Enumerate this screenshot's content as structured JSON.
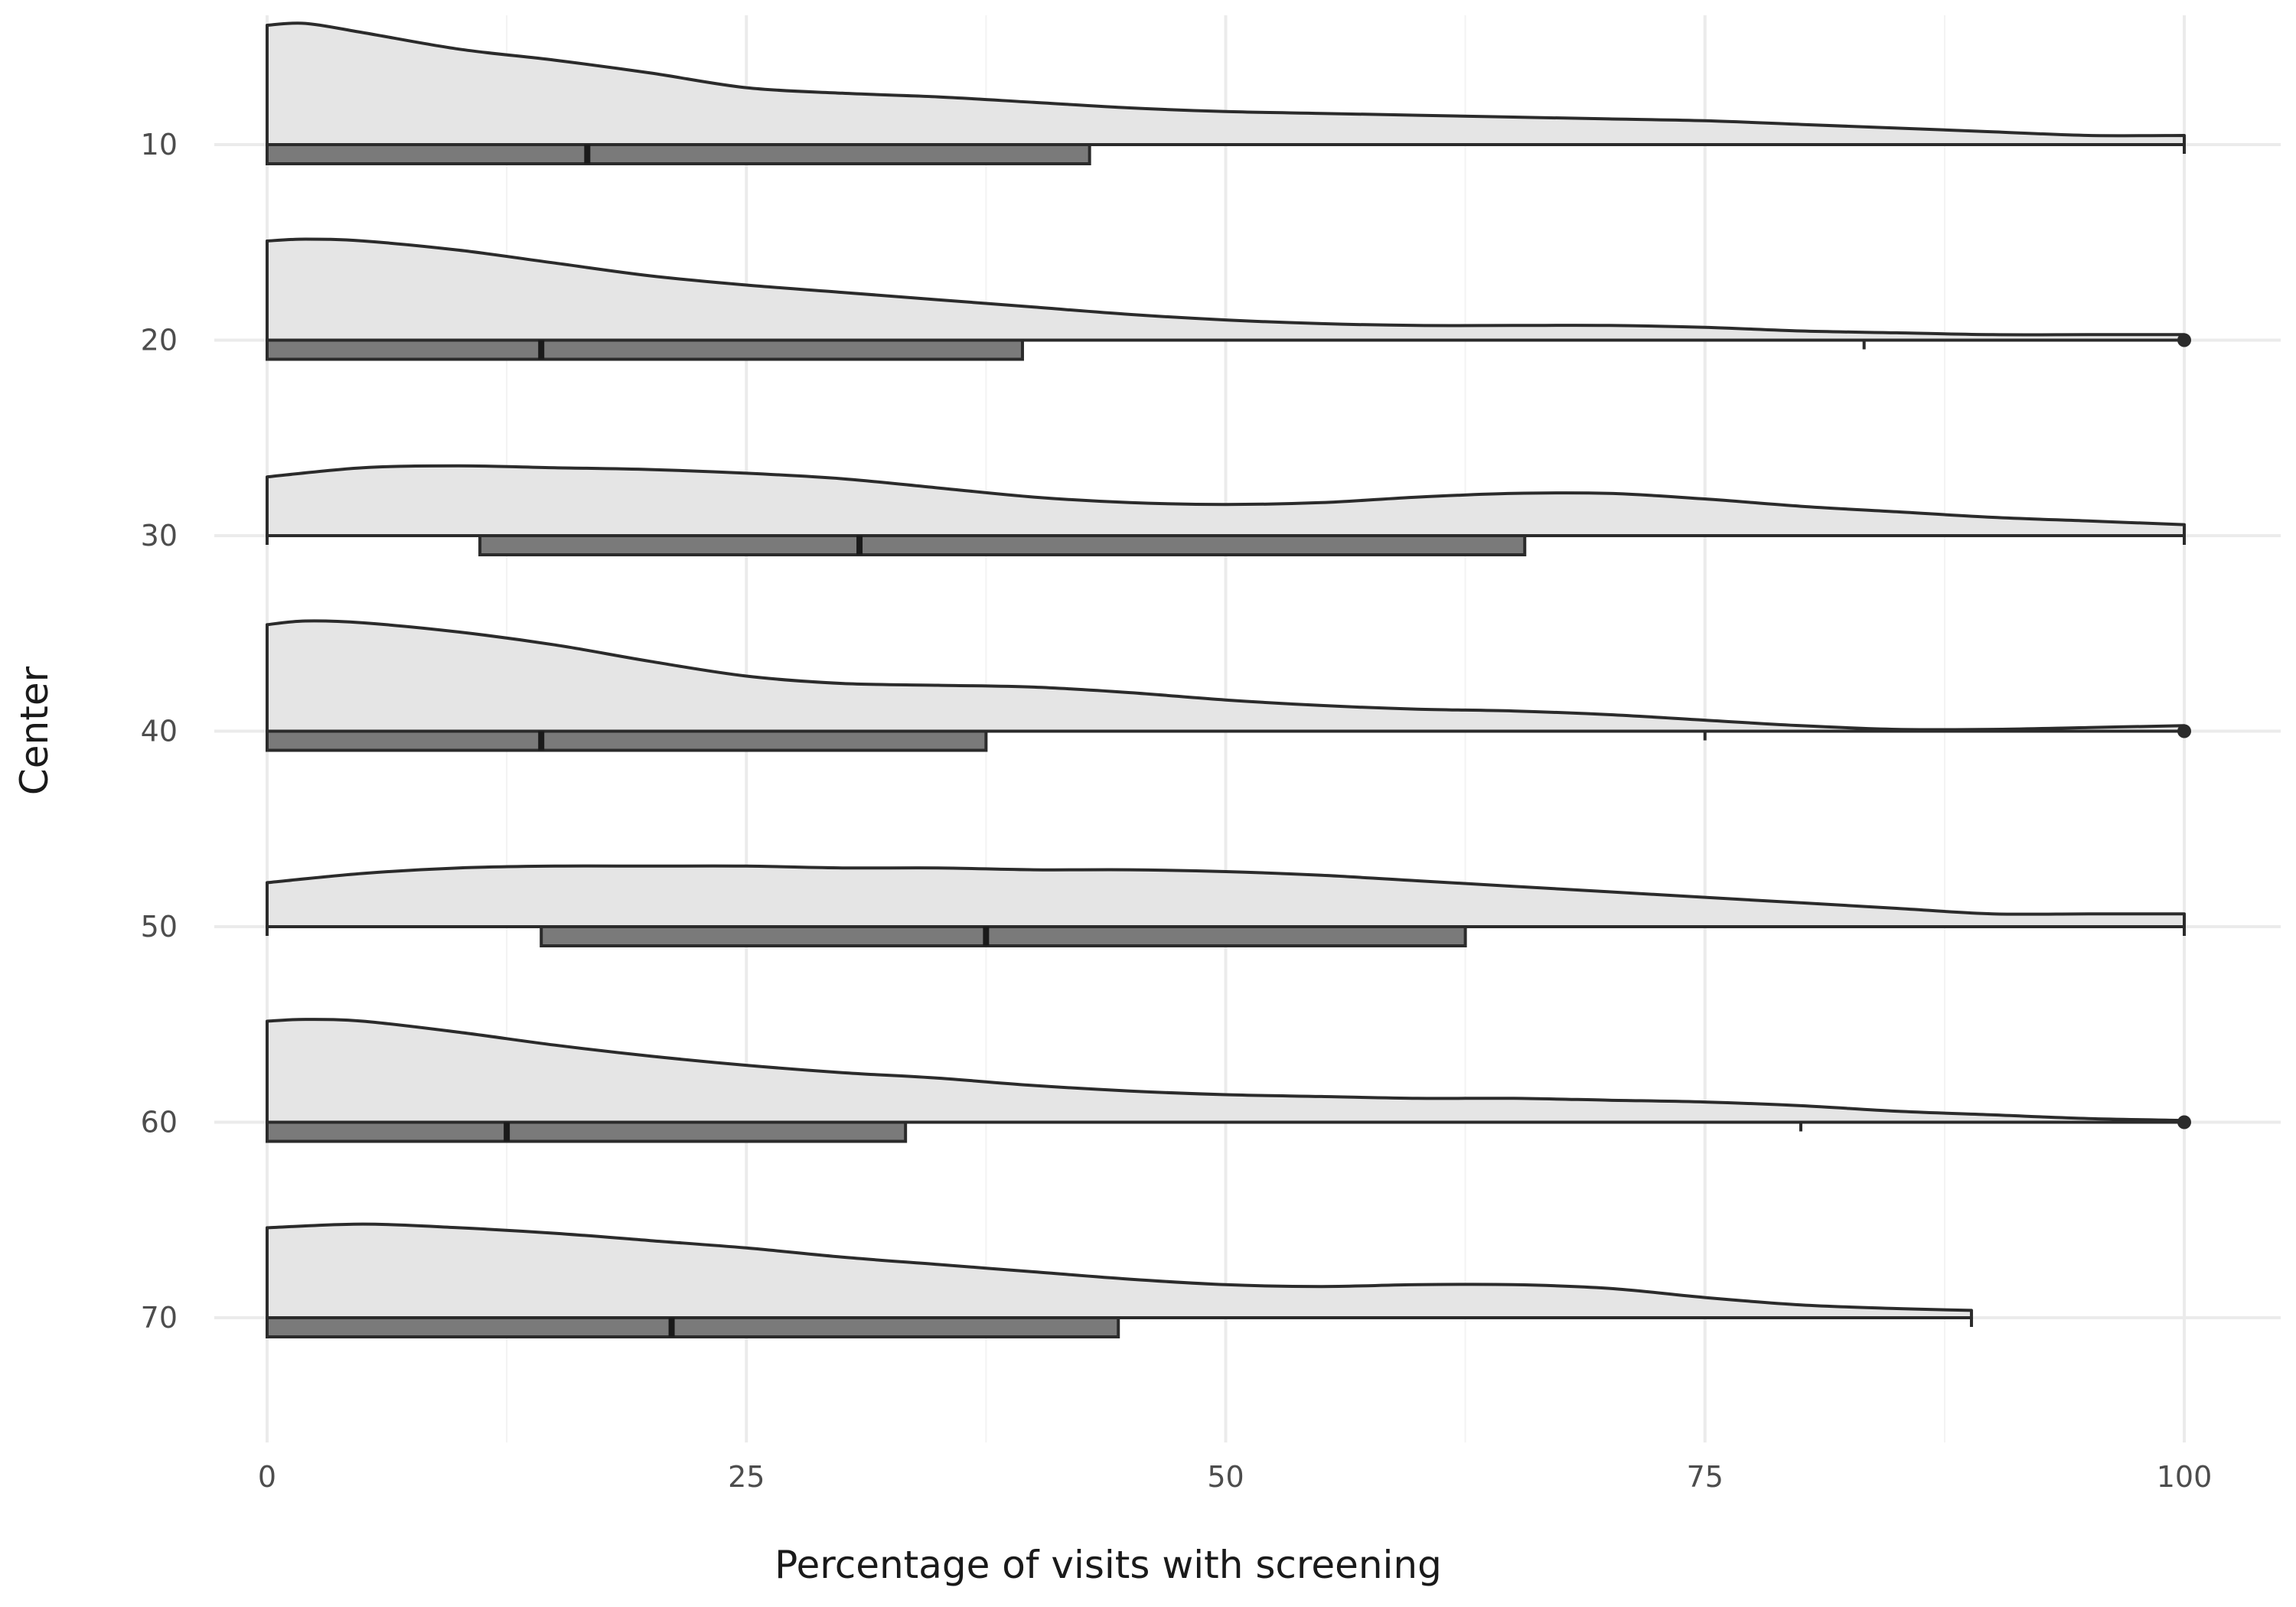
{
  "chart_data": {
    "type": "raincloud",
    "xlabel": "Percentage of visits with screening",
    "ylabel": "Center",
    "xlim": [
      -3.5,
      105
    ],
    "ylim": [
      -7,
      77
    ],
    "x_ticks": [
      0,
      25,
      50,
      75,
      100
    ],
    "y_ticks": [
      10,
      20,
      30,
      40,
      50,
      60,
      70
    ],
    "grid": true,
    "legend": "none",
    "colors": {
      "density_fill": "#e5e5e5",
      "box_fill": "#7a7a7a",
      "outline": "#2b2b2b"
    },
    "series": [
      {
        "center": 10,
        "box": {
          "q1": 0,
          "median": 16.7,
          "q3": 42.9,
          "whisker_low": 0,
          "whisker_high": 100
        },
        "outliers": [],
        "density": [
          [
            0,
            6.5
          ],
          [
            2,
            6.6
          ],
          [
            5,
            6.1
          ],
          [
            10,
            5.2
          ],
          [
            15,
            4.6
          ],
          [
            20,
            3.9
          ],
          [
            25,
            3.1
          ],
          [
            30,
            2.8
          ],
          [
            35,
            2.6
          ],
          [
            40,
            2.3
          ],
          [
            45,
            2.0
          ],
          [
            50,
            1.8
          ],
          [
            55,
            1.7
          ],
          [
            60,
            1.6
          ],
          [
            65,
            1.5
          ],
          [
            70,
            1.4
          ],
          [
            75,
            1.3
          ],
          [
            80,
            1.1
          ],
          [
            85,
            0.9
          ],
          [
            90,
            0.7
          ],
          [
            95,
            0.5
          ],
          [
            100,
            0.5
          ]
        ]
      },
      {
        "center": 20,
        "box": {
          "q1": 0,
          "median": 14.3,
          "q3": 39.4,
          "whisker_low": 0,
          "whisker_high": 83.3
        },
        "outliers": [
          100
        ],
        "density": [
          [
            0,
            5.4
          ],
          [
            2,
            5.5
          ],
          [
            5,
            5.4
          ],
          [
            10,
            4.9
          ],
          [
            15,
            4.2
          ],
          [
            20,
            3.5
          ],
          [
            25,
            3.0
          ],
          [
            30,
            2.6
          ],
          [
            35,
            2.2
          ],
          [
            40,
            1.8
          ],
          [
            45,
            1.4
          ],
          [
            50,
            1.1
          ],
          [
            55,
            0.9
          ],
          [
            60,
            0.8
          ],
          [
            65,
            0.8
          ],
          [
            70,
            0.8
          ],
          [
            75,
            0.7
          ],
          [
            80,
            0.5
          ],
          [
            85,
            0.4
          ],
          [
            90,
            0.3
          ],
          [
            95,
            0.3
          ],
          [
            100,
            0.3
          ]
        ]
      },
      {
        "center": 30,
        "box": {
          "q1": 11.1,
          "median": 30.9,
          "q3": 65.6,
          "whisker_low": 0,
          "whisker_high": 100
        },
        "outliers": [],
        "density": [
          [
            0,
            3.2
          ],
          [
            5,
            3.7
          ],
          [
            10,
            3.8
          ],
          [
            15,
            3.7
          ],
          [
            20,
            3.6
          ],
          [
            25,
            3.4
          ],
          [
            30,
            3.1
          ],
          [
            35,
            2.6
          ],
          [
            40,
            2.1
          ],
          [
            45,
            1.8
          ],
          [
            50,
            1.7
          ],
          [
            55,
            1.8
          ],
          [
            60,
            2.1
          ],
          [
            65,
            2.3
          ],
          [
            70,
            2.3
          ],
          [
            75,
            2.0
          ],
          [
            80,
            1.6
          ],
          [
            85,
            1.3
          ],
          [
            90,
            1.0
          ],
          [
            95,
            0.8
          ],
          [
            100,
            0.6
          ]
        ]
      },
      {
        "center": 40,
        "box": {
          "q1": 0,
          "median": 14.3,
          "q3": 37.5,
          "whisker_low": 0,
          "whisker_high": 75
        },
        "outliers": [
          100
        ],
        "density": [
          [
            0,
            5.8
          ],
          [
            2,
            6.0
          ],
          [
            5,
            5.9
          ],
          [
            10,
            5.4
          ],
          [
            15,
            4.7
          ],
          [
            20,
            3.8
          ],
          [
            25,
            3.0
          ],
          [
            30,
            2.6
          ],
          [
            35,
            2.5
          ],
          [
            40,
            2.4
          ],
          [
            45,
            2.1
          ],
          [
            50,
            1.7
          ],
          [
            55,
            1.4
          ],
          [
            60,
            1.2
          ],
          [
            65,
            1.1
          ],
          [
            70,
            0.9
          ],
          [
            75,
            0.6
          ],
          [
            80,
            0.3
          ],
          [
            85,
            0.1
          ],
          [
            90,
            0.1
          ],
          [
            95,
            0.2
          ],
          [
            100,
            0.3
          ]
        ]
      },
      {
        "center": 50,
        "box": {
          "q1": 14.3,
          "median": 37.5,
          "q3": 62.5,
          "whisker_low": 0,
          "whisker_high": 100
        },
        "outliers": [],
        "density": [
          [
            0,
            2.4
          ],
          [
            5,
            2.9
          ],
          [
            10,
            3.2
          ],
          [
            15,
            3.3
          ],
          [
            20,
            3.3
          ],
          [
            25,
            3.3
          ],
          [
            30,
            3.2
          ],
          [
            35,
            3.2
          ],
          [
            40,
            3.1
          ],
          [
            45,
            3.1
          ],
          [
            50,
            3.0
          ],
          [
            55,
            2.8
          ],
          [
            60,
            2.5
          ],
          [
            65,
            2.2
          ],
          [
            70,
            1.9
          ],
          [
            75,
            1.6
          ],
          [
            80,
            1.3
          ],
          [
            85,
            1.0
          ],
          [
            90,
            0.7
          ],
          [
            95,
            0.7
          ],
          [
            100,
            0.7
          ]
        ]
      },
      {
        "center": 60,
        "box": {
          "q1": 0,
          "median": 12.5,
          "q3": 33.3,
          "whisker_low": 0,
          "whisker_high": 80
        },
        "outliers": [
          100
        ],
        "density": [
          [
            0,
            5.5
          ],
          [
            2,
            5.6
          ],
          [
            5,
            5.5
          ],
          [
            10,
            4.9
          ],
          [
            15,
            4.2
          ],
          [
            20,
            3.6
          ],
          [
            25,
            3.1
          ],
          [
            30,
            2.7
          ],
          [
            35,
            2.4
          ],
          [
            40,
            2.0
          ],
          [
            45,
            1.7
          ],
          [
            50,
            1.5
          ],
          [
            55,
            1.4
          ],
          [
            60,
            1.3
          ],
          [
            65,
            1.3
          ],
          [
            70,
            1.2
          ],
          [
            75,
            1.1
          ],
          [
            80,
            0.9
          ],
          [
            85,
            0.6
          ],
          [
            90,
            0.4
          ],
          [
            95,
            0.2
          ],
          [
            100,
            0.1
          ]
        ]
      },
      {
        "center": 70,
        "box": {
          "q1": 0,
          "median": 21.1,
          "q3": 44.4,
          "whisker_low": 0,
          "whisker_high": 88.9
        },
        "outliers": [],
        "density": [
          [
            0,
            4.9
          ],
          [
            5,
            5.1
          ],
          [
            10,
            4.9
          ],
          [
            15,
            4.6
          ],
          [
            20,
            4.2
          ],
          [
            25,
            3.8
          ],
          [
            30,
            3.3
          ],
          [
            35,
            2.9
          ],
          [
            40,
            2.5
          ],
          [
            45,
            2.1
          ],
          [
            50,
            1.8
          ],
          [
            55,
            1.7
          ],
          [
            60,
            1.8
          ],
          [
            65,
            1.8
          ],
          [
            70,
            1.6
          ],
          [
            75,
            1.1
          ],
          [
            80,
            0.7
          ],
          [
            85,
            0.5
          ],
          [
            88.9,
            0.4
          ]
        ]
      }
    ]
  }
}
